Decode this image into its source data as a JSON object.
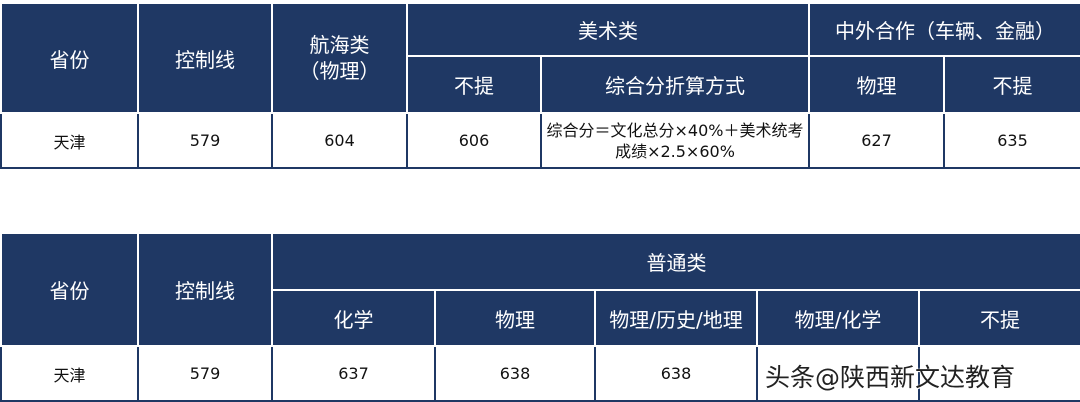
{
  "table1": {
    "headers": {
      "province": "省份",
      "control_line": "控制线",
      "navigation": "航海类\n（物理）",
      "art": "美术类",
      "art_sub": [
        "不提",
        "综合分折算方式"
      ],
      "sino_foreign": "中外合作（车辆、金融）",
      "sino_foreign_sub": [
        "物理",
        "不提"
      ]
    },
    "row": {
      "province": "天津",
      "control_line": "579",
      "navigation": "604",
      "art_buti": "606",
      "art_formula": "综合分＝文化总分×40%＋美术统考成绩×2.5×60%",
      "sf_physics": "627",
      "sf_buti": "635"
    }
  },
  "table2": {
    "headers": {
      "province": "省份",
      "control_line": "控制线",
      "general": "普通类",
      "general_sub": [
        "化学",
        "物理",
        "物理/历史/地理",
        "物理/化学",
        "不提"
      ]
    },
    "row": {
      "province": "天津",
      "control_line": "579",
      "values": [
        "637",
        "638",
        "638",
        "",
        ""
      ]
    }
  },
  "watermark": "头条@陕西新文达教育"
}
